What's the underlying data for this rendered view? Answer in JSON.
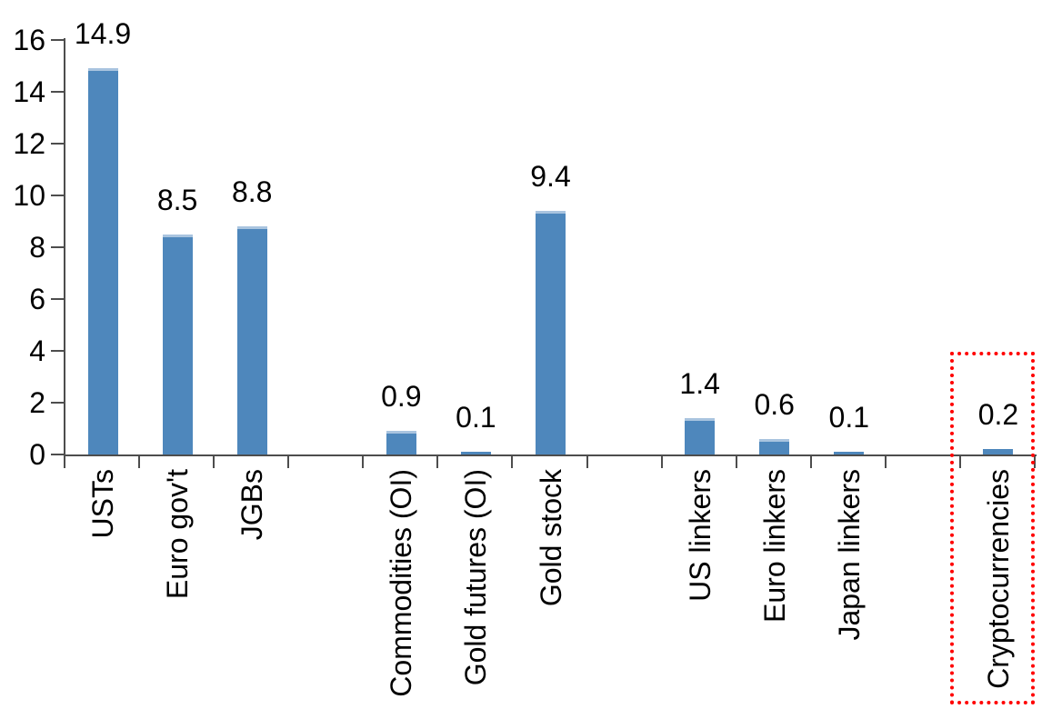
{
  "chart_data": {
    "type": "bar",
    "title": "",
    "xlabel": "",
    "ylabel": "",
    "categories": [
      "USTs",
      "Euro gov't",
      "JGBs",
      "Commodities (OI)",
      "Gold futures (OI)",
      "Gold stock",
      "US linkers",
      "Euro linkers",
      "Japan linkers",
      "Cryptocurrencies"
    ],
    "values": [
      14.9,
      8.5,
      8.8,
      0.9,
      0.1,
      9.4,
      1.4,
      0.6,
      0.1,
      0.2
    ],
    "slots": [
      {
        "label": "USTs",
        "value": 14.9
      },
      {
        "label": "Euro gov't",
        "value": 8.5
      },
      {
        "label": "JGBs",
        "value": 8.8
      },
      {
        "label": null,
        "value": null
      },
      {
        "label": "Commodities (OI)",
        "value": 0.9
      },
      {
        "label": "Gold futures (OI)",
        "value": 0.1
      },
      {
        "label": "Gold stock",
        "value": 9.4
      },
      {
        "label": null,
        "value": null
      },
      {
        "label": "US linkers",
        "value": 1.4
      },
      {
        "label": "Euro linkers",
        "value": 0.6
      },
      {
        "label": "Japan linkers",
        "value": 0.1
      },
      {
        "label": null,
        "value": null
      },
      {
        "label": "Cryptocurrencies",
        "value": 0.2
      }
    ],
    "data_labels": [
      "14.9",
      "8.5",
      "8.8",
      "0.9",
      "0.1",
      "9.4",
      "1.4",
      "0.6",
      "0.1",
      "0.2"
    ],
    "y_ticks": [
      0,
      2,
      4,
      6,
      8,
      10,
      12,
      14,
      16
    ],
    "y_tick_labels": [
      "0",
      "2",
      "4",
      "6",
      "8",
      "10",
      "12",
      "14",
      "16"
    ],
    "ylim": [
      0,
      16
    ],
    "grid": false,
    "legend": null,
    "bar_color": "#4E87BC",
    "bar_top_edge_color": "#A9C4DF",
    "axis_color": "#4D4D4D",
    "text_color": "#000000",
    "background_color": "#FFFFFF",
    "highlight": {
      "category": "Cryptocurrencies",
      "value": 0.2,
      "box_color": "#FF0000",
      "box_style": "dotted"
    }
  }
}
